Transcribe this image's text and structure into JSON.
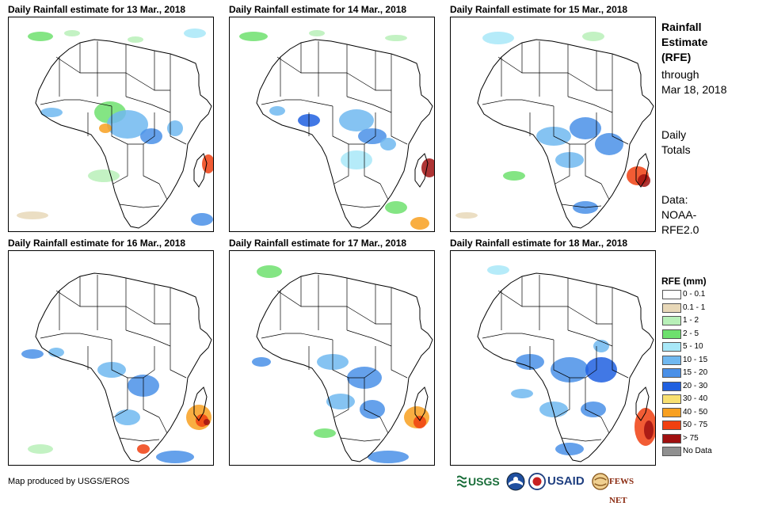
{
  "panels": [
    {
      "title": "Daily Rainfall estimate for 13 Mar., 2018"
    },
    {
      "title": "Daily Rainfall estimate for 14 Mar., 2018"
    },
    {
      "title": "Daily Rainfall estimate for 15 Mar., 2018"
    },
    {
      "title": "Daily Rainfall estimate for 16 Mar., 2018"
    },
    {
      "title": "Daily Rainfall estimate for 17 Mar., 2018"
    },
    {
      "title": "Daily Rainfall estimate for 18 Mar., 2018"
    }
  ],
  "sidebar": {
    "title_line1": "Rainfall",
    "title_line2": "Estimate",
    "title_line3": "(RFE)",
    "through_label": "through",
    "through_date": "Mar 18, 2018",
    "totals_line1": "Daily",
    "totals_line2": "Totals",
    "data_line1": "Data:",
    "data_line2": "NOAA-",
    "data_line3": "RFE2.0"
  },
  "legend": {
    "title": "RFE (mm)",
    "items": [
      {
        "label": "0 - 0.1",
        "color": "#ffffff"
      },
      {
        "label": "0.1 - 1",
        "color": "#e8d8b8"
      },
      {
        "label": "1 - 2",
        "color": "#b8f0b8"
      },
      {
        "label": "2 - 5",
        "color": "#6ee06e"
      },
      {
        "label": "5 - 10",
        "color": "#a8e8f8"
      },
      {
        "label": "10 - 15",
        "color": "#70b8f0"
      },
      {
        "label": "15 - 20",
        "color": "#4a90e8"
      },
      {
        "label": "20 - 30",
        "color": "#2060e0"
      },
      {
        "label": "30 - 40",
        "color": "#f8e070"
      },
      {
        "label": "40 - 50",
        "color": "#f8a020"
      },
      {
        "label": "50 - 75",
        "color": "#f04010"
      },
      {
        "label": "> 75",
        "color": "#a01010"
      },
      {
        "label": "No Data",
        "color": "#909090"
      }
    ]
  },
  "credit": "Map produced by USGS/EROS",
  "logos": {
    "usgs": "USGS",
    "usaid": "USAID",
    "fewsnet": "FEWS NET"
  }
}
